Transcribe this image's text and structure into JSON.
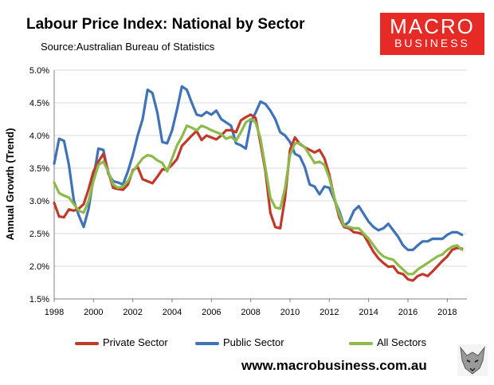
{
  "header": {
    "title": "Labour Price Index: National by Sector",
    "subtitle": "Source:Australian Bureau of Statistics"
  },
  "logo": {
    "main": "MACRO",
    "sub": "BUSINESS",
    "color": "#e62a25"
  },
  "footer": {
    "url": "www.macrobusiness.com.au"
  },
  "chart_data": {
    "type": "line",
    "title": "Labour Price Index: National by Sector",
    "xlabel": "",
    "ylabel": "Annual Growth (Trend)",
    "xlim": [
      1998,
      2019
    ],
    "ylim": [
      1.5,
      5.0
    ],
    "yticks": [
      1.5,
      2.0,
      2.5,
      3.0,
      3.5,
      4.0,
      4.5,
      5.0
    ],
    "ytick_labels": [
      "1.5%",
      "2.0%",
      "2.5%",
      "3.0%",
      "3.5%",
      "4.0%",
      "4.5%",
      "5.0%"
    ],
    "xticks": [
      1998,
      2000,
      2002,
      2004,
      2006,
      2008,
      2010,
      2012,
      2014,
      2016,
      2018
    ],
    "xtick_labels": [
      "1998",
      "2000",
      "2002",
      "2004",
      "2006",
      "2008",
      "2010",
      "2012",
      "2014",
      "2016",
      "2018"
    ],
    "grid": "horizontal",
    "legend_position": "bottom",
    "series": [
      {
        "name": "Private Sector",
        "color": "#c0392b",
        "x": [
          1998.0,
          1998.25,
          1998.5,
          1998.75,
          1999.0,
          1999.25,
          1999.5,
          1999.75,
          2000.0,
          2000.25,
          2000.5,
          2000.75,
          2001.0,
          2001.25,
          2001.5,
          2001.75,
          2002.0,
          2002.25,
          2002.5,
          2002.75,
          2003.0,
          2003.25,
          2003.5,
          2003.75,
          2004.0,
          2004.25,
          2004.5,
          2004.75,
          2005.0,
          2005.25,
          2005.5,
          2005.75,
          2006.0,
          2006.25,
          2006.5,
          2006.75,
          2007.0,
          2007.25,
          2007.5,
          2007.75,
          2008.0,
          2008.25,
          2008.5,
          2008.75,
          2009.0,
          2009.25,
          2009.5,
          2009.75,
          2010.0,
          2010.25,
          2010.5,
          2010.75,
          2011.0,
          2011.25,
          2011.5,
          2011.75,
          2012.0,
          2012.25,
          2012.5,
          2012.75,
          2013.0,
          2013.25,
          2013.5,
          2013.75,
          2014.0,
          2014.25,
          2014.5,
          2014.75,
          2015.0,
          2015.25,
          2015.5,
          2015.75,
          2016.0,
          2016.25,
          2016.5,
          2016.75,
          2017.0,
          2017.25,
          2017.5,
          2017.75,
          2018.0,
          2018.25,
          2018.5,
          2018.75
        ],
        "values": [
          2.97,
          2.76,
          2.75,
          2.87,
          2.85,
          2.88,
          2.95,
          3.18,
          3.45,
          3.6,
          3.72,
          3.45,
          3.2,
          3.18,
          3.17,
          3.25,
          3.47,
          3.52,
          3.33,
          3.3,
          3.27,
          3.37,
          3.48,
          3.48,
          3.55,
          3.64,
          3.84,
          3.92,
          4.0,
          4.07,
          3.93,
          4.0,
          3.97,
          3.94,
          4.0,
          4.08,
          4.08,
          4.05,
          4.23,
          4.28,
          4.32,
          4.27,
          3.88,
          3.45,
          2.82,
          2.6,
          2.58,
          3.05,
          3.78,
          3.97,
          3.87,
          3.82,
          3.78,
          3.74,
          3.78,
          3.65,
          3.4,
          3.05,
          2.75,
          2.6,
          2.58,
          2.52,
          2.51,
          2.48,
          2.35,
          2.22,
          2.12,
          2.05,
          1.99,
          2.0,
          1.9,
          1.88,
          1.8,
          1.78,
          1.85,
          1.88,
          1.85,
          1.92,
          2.0,
          2.08,
          2.15,
          2.25,
          2.28,
          2.27
        ]
      },
      {
        "name": "Public Sector",
        "color": "#3f72b6",
        "x": [
          1998.0,
          1998.25,
          1998.5,
          1998.75,
          1999.0,
          1999.25,
          1999.5,
          1999.75,
          2000.0,
          2000.25,
          2000.5,
          2000.75,
          2001.0,
          2001.25,
          2001.5,
          2001.75,
          2002.0,
          2002.25,
          2002.5,
          2002.75,
          2003.0,
          2003.25,
          2003.5,
          2003.75,
          2004.0,
          2004.25,
          2004.5,
          2004.75,
          2005.0,
          2005.25,
          2005.5,
          2005.75,
          2006.0,
          2006.25,
          2006.5,
          2006.75,
          2007.0,
          2007.25,
          2007.5,
          2007.75,
          2008.0,
          2008.25,
          2008.5,
          2008.75,
          2009.0,
          2009.25,
          2009.5,
          2009.75,
          2010.0,
          2010.25,
          2010.5,
          2010.75,
          2011.0,
          2011.25,
          2011.5,
          2011.75,
          2012.0,
          2012.25,
          2012.5,
          2012.75,
          2013.0,
          2013.25,
          2013.5,
          2013.75,
          2014.0,
          2014.25,
          2014.5,
          2014.75,
          2015.0,
          2015.25,
          2015.5,
          2015.75,
          2016.0,
          2016.25,
          2016.5,
          2016.75,
          2017.0,
          2017.25,
          2017.5,
          2017.75,
          2018.0,
          2018.25,
          2018.5,
          2018.75
        ],
        "values": [
          3.57,
          3.95,
          3.92,
          3.55,
          3.0,
          2.78,
          2.6,
          2.88,
          3.35,
          3.8,
          3.78,
          3.42,
          3.3,
          3.28,
          3.25,
          3.45,
          3.7,
          4.0,
          4.25,
          4.7,
          4.65,
          4.35,
          3.9,
          3.88,
          4.08,
          4.4,
          4.75,
          4.7,
          4.5,
          4.32,
          4.3,
          4.36,
          4.32,
          4.38,
          4.25,
          4.2,
          4.15,
          3.88,
          3.85,
          3.8,
          4.2,
          4.35,
          4.52,
          4.48,
          4.38,
          4.25,
          4.05,
          4.0,
          3.9,
          3.72,
          3.68,
          3.52,
          3.25,
          3.22,
          3.1,
          3.22,
          3.2,
          3.02,
          2.85,
          2.62,
          2.68,
          2.85,
          2.92,
          2.8,
          2.68,
          2.6,
          2.55,
          2.58,
          2.65,
          2.55,
          2.45,
          2.32,
          2.25,
          2.25,
          2.32,
          2.38,
          2.38,
          2.42,
          2.42,
          2.42,
          2.48,
          2.52,
          2.52,
          2.48
        ]
      },
      {
        "name": "All Sectors",
        "color": "#8dbb4b",
        "x": [
          1998.0,
          1998.25,
          1998.5,
          1998.75,
          1999.0,
          1999.25,
          1999.5,
          1999.75,
          2000.0,
          2000.25,
          2000.5,
          2000.75,
          2001.0,
          2001.25,
          2001.5,
          2001.75,
          2002.0,
          2002.25,
          2002.5,
          2002.75,
          2003.0,
          2003.25,
          2003.5,
          2003.75,
          2004.0,
          2004.25,
          2004.5,
          2004.75,
          2005.0,
          2005.25,
          2005.5,
          2005.75,
          2006.0,
          2006.25,
          2006.5,
          2006.75,
          2007.0,
          2007.25,
          2007.5,
          2007.75,
          2008.0,
          2008.25,
          2008.5,
          2008.75,
          2009.0,
          2009.25,
          2009.5,
          2009.75,
          2010.0,
          2010.25,
          2010.5,
          2010.75,
          2011.0,
          2011.25,
          2011.5,
          2011.75,
          2012.0,
          2012.25,
          2012.5,
          2012.75,
          2013.0,
          2013.25,
          2013.5,
          2013.75,
          2014.0,
          2014.25,
          2014.5,
          2014.75,
          2015.0,
          2015.25,
          2015.5,
          2015.75,
          2016.0,
          2016.25,
          2016.5,
          2016.75,
          2017.0,
          2017.25,
          2017.5,
          2017.75,
          2018.0,
          2018.25,
          2018.5,
          2018.75
        ],
        "values": [
          3.28,
          3.12,
          3.08,
          3.05,
          2.95,
          2.85,
          2.82,
          3.0,
          3.3,
          3.55,
          3.6,
          3.45,
          3.25,
          3.2,
          3.22,
          3.3,
          3.45,
          3.55,
          3.65,
          3.7,
          3.68,
          3.62,
          3.58,
          3.45,
          3.65,
          3.85,
          3.98,
          4.15,
          4.12,
          4.08,
          4.15,
          4.12,
          4.08,
          4.05,
          4.02,
          3.95,
          3.98,
          3.92,
          4.05,
          4.2,
          4.25,
          4.2,
          3.95,
          3.5,
          3.05,
          2.9,
          2.88,
          3.2,
          3.7,
          3.88,
          3.88,
          3.82,
          3.7,
          3.58,
          3.6,
          3.55,
          3.35,
          3.05,
          2.8,
          2.62,
          2.6,
          2.58,
          2.58,
          2.5,
          2.42,
          2.32,
          2.22,
          2.15,
          2.12,
          2.1,
          2.02,
          1.95,
          1.88,
          1.88,
          1.95,
          2.0,
          2.05,
          2.1,
          2.15,
          2.18,
          2.25,
          2.3,
          2.32,
          2.25
        ]
      }
    ]
  }
}
